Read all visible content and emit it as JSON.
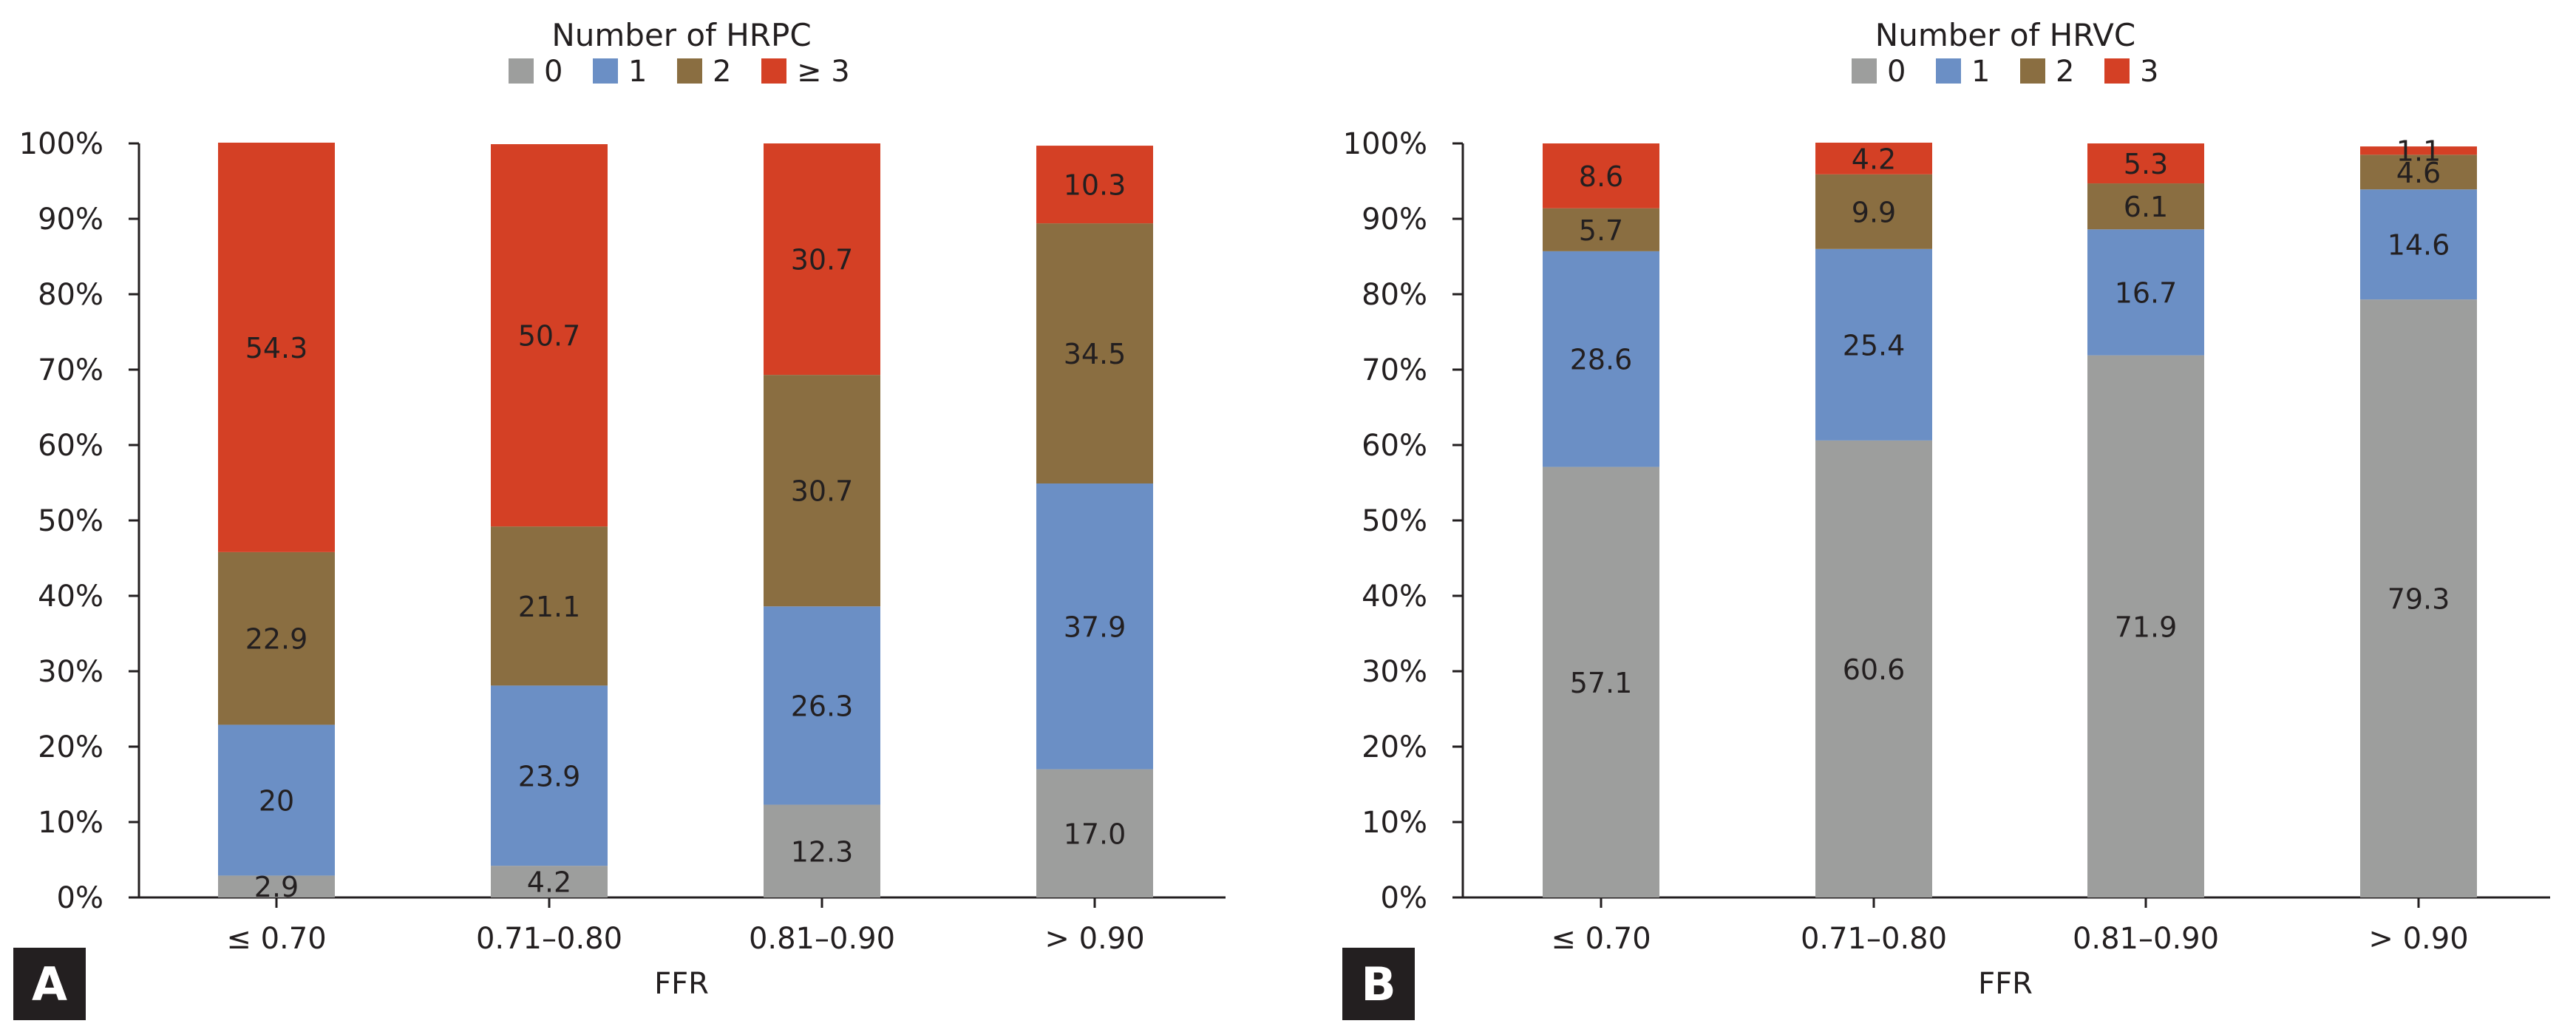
{
  "colors": {
    "gray": "#9d9e9d",
    "blue": "#6b8fc5",
    "olive": "#8a6e41",
    "red": "#d44025",
    "axis": "#231f20",
    "panel_badge": "#231f20"
  },
  "chart_data": [
    {
      "type": "bar",
      "stacked": true,
      "panel": "A",
      "legend_title": "Number of HRPC",
      "legend_position": "top-center",
      "xlabel": "FFR",
      "ylabel": "",
      "ylim": [
        0,
        100
      ],
      "grid": false,
      "yticks": [
        "0%",
        "10%",
        "20%",
        "30%",
        "40%",
        "50%",
        "60%",
        "70%",
        "80%",
        "90%",
        "100%"
      ],
      "categories": [
        "≤ 0.70",
        "0.71–0.80",
        "0.81–0.90",
        "> 0.90"
      ],
      "series": [
        {
          "name": "0",
          "color": "gray",
          "values": [
            2.9,
            4.2,
            12.3,
            17.0
          ],
          "labels": [
            "2.9",
            "4.2",
            "12.3",
            "17.0"
          ]
        },
        {
          "name": "1",
          "color": "blue",
          "values": [
            20,
            23.9,
            26.3,
            37.9
          ],
          "labels": [
            "20",
            "23.9",
            "26.3",
            "37.9"
          ]
        },
        {
          "name": "2",
          "color": "olive",
          "values": [
            22.9,
            21.1,
            30.7,
            34.5
          ],
          "labels": [
            "22.9",
            "21.1",
            "30.7",
            "34.5"
          ]
        },
        {
          "name": "≥ 3",
          "color": "red",
          "values": [
            54.3,
            50.7,
            30.7,
            10.3
          ],
          "labels": [
            "54.3",
            "50.7",
            "30.7",
            "10.3"
          ]
        }
      ]
    },
    {
      "type": "bar",
      "stacked": true,
      "panel": "B",
      "legend_title": "Number of HRVC",
      "legend_position": "top-center",
      "xlabel": "FFR",
      "ylabel": "",
      "ylim": [
        0,
        100
      ],
      "grid": false,
      "yticks": [
        "0%",
        "10%",
        "20%",
        "30%",
        "40%",
        "50%",
        "60%",
        "70%",
        "80%",
        "90%",
        "100%"
      ],
      "categories": [
        "≤ 0.70",
        "0.71–0.80",
        "0.81–0.90",
        "> 0.90"
      ],
      "series": [
        {
          "name": "0",
          "color": "gray",
          "values": [
            57.1,
            60.6,
            71.9,
            79.3
          ],
          "labels": [
            "57.1",
            "60.6",
            "71.9",
            "79.3"
          ]
        },
        {
          "name": "1",
          "color": "blue",
          "values": [
            28.6,
            25.4,
            16.7,
            14.6
          ],
          "labels": [
            "28.6",
            "25.4",
            "16.7",
            "14.6"
          ]
        },
        {
          "name": "2",
          "color": "olive",
          "values": [
            5.7,
            9.9,
            6.1,
            4.6
          ],
          "labels": [
            "5.7",
            "9.9",
            "6.1",
            "4.6"
          ]
        },
        {
          "name": "3",
          "color": "red",
          "values": [
            8.6,
            4.2,
            5.3,
            1.1
          ],
          "labels": [
            "8.6",
            "4.2",
            "5.3",
            "1.1"
          ]
        }
      ]
    }
  ]
}
